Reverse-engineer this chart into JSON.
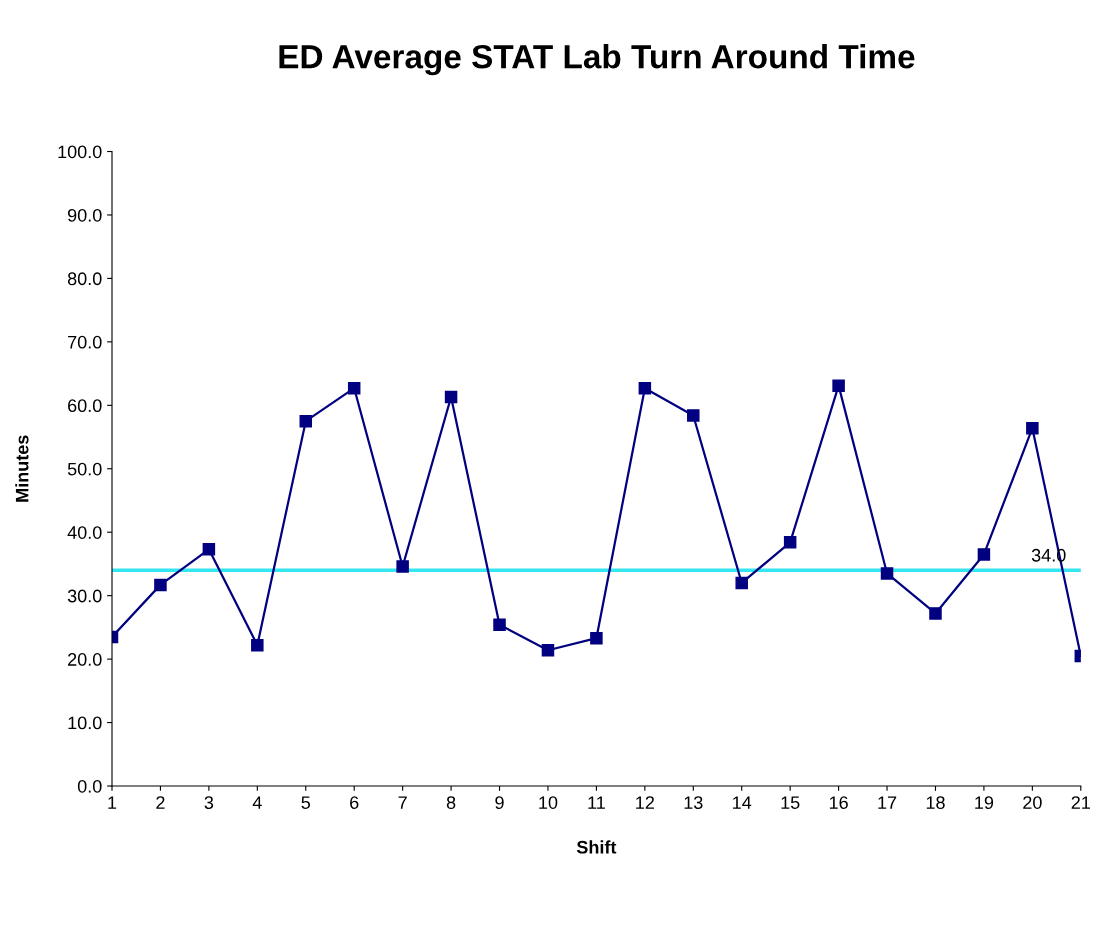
{
  "chart_data": {
    "type": "line",
    "title": "ED Average STAT Lab Turn Around Time",
    "xlabel": "Shift",
    "ylabel": "Minutes",
    "categories": [
      "1",
      "2",
      "3",
      "4",
      "5",
      "6",
      "7",
      "8",
      "9",
      "10",
      "11",
      "12",
      "13",
      "14",
      "15",
      "16",
      "17",
      "18",
      "19",
      "20",
      "21"
    ],
    "series": [
      {
        "color": "#000080",
        "values": [
          23.5,
          31.7,
          37.3,
          22.2,
          57.5,
          62.7,
          34.6,
          61.3,
          25.4,
          21.4,
          23.3,
          62.7,
          58.4,
          32.0,
          38.4,
          63.1,
          33.5,
          27.2,
          36.5,
          56.4,
          20.5
        ]
      }
    ],
    "ylim": [
      0,
      100
    ],
    "yticks": [
      {
        "value": 0,
        "label": "0.0"
      },
      {
        "value": 10,
        "label": "10.0"
      },
      {
        "value": 20,
        "label": "20.0"
      },
      {
        "value": 30,
        "label": "30.0"
      },
      {
        "value": 40,
        "label": "40.0"
      },
      {
        "value": 50,
        "label": "50.0"
      },
      {
        "value": 60,
        "label": "60.0"
      },
      {
        "value": 70,
        "label": "70.0"
      },
      {
        "value": 80,
        "label": "80.0"
      },
      {
        "value": 90,
        "label": "90.0"
      },
      {
        "value": 100,
        "label": "100.0"
      }
    ],
    "ref_lines": [
      {
        "axis": "y",
        "value": 34.0,
        "label": "34.0",
        "color": "#33e6f0"
      }
    ],
    "marker": "square",
    "line_style": "solid",
    "grid": false,
    "legend": false
  }
}
